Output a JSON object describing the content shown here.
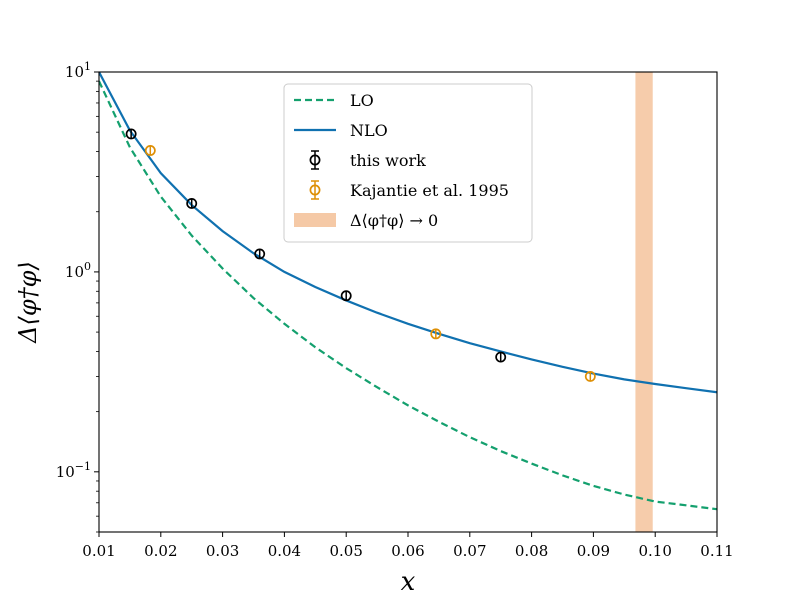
{
  "chart_data": {
    "type": "line",
    "title": "",
    "xlabel": "x",
    "ylabel": "Δ⟨φ†φ⟩",
    "xlim": [
      0.01,
      0.11
    ],
    "ylim": [
      0.05,
      10
    ],
    "yscale": "log",
    "x_ticks": [
      0.01,
      0.02,
      0.03,
      0.04,
      0.05,
      0.06,
      0.07,
      0.08,
      0.09,
      0.1,
      0.11
    ],
    "x_tick_labels": [
      "0.01",
      "0.02",
      "0.03",
      "0.04",
      "0.05",
      "0.06",
      "0.07",
      "0.08",
      "0.09",
      "0.10",
      "0.11"
    ],
    "y_major_ticks": [
      {
        "value": 0.1,
        "base": "10",
        "exp": "−1"
      },
      {
        "value": 1,
        "base": "10",
        "exp": "0"
      },
      {
        "value": 10,
        "base": "10",
        "exp": "1"
      }
    ],
    "series": [
      {
        "name": "LO",
        "style": "dashed",
        "color": "#14a06e",
        "x": [
          0.01,
          0.015,
          0.02,
          0.025,
          0.03,
          0.035,
          0.04,
          0.045,
          0.05,
          0.055,
          0.06,
          0.065,
          0.07,
          0.075,
          0.08,
          0.085,
          0.09,
          0.095,
          0.1,
          0.105,
          0.11
        ],
        "y": [
          9.0,
          4.2,
          2.38,
          1.52,
          1.04,
          0.74,
          0.55,
          0.42,
          0.33,
          0.265,
          0.215,
          0.178,
          0.149,
          0.127,
          0.11,
          0.096,
          0.085,
          0.077,
          0.071,
          0.068,
          0.065
        ]
      },
      {
        "name": "NLO",
        "style": "solid",
        "color": "#1071b0",
        "x": [
          0.01,
          0.015,
          0.02,
          0.025,
          0.03,
          0.035,
          0.04,
          0.045,
          0.05,
          0.055,
          0.06,
          0.065,
          0.07,
          0.075,
          0.08,
          0.085,
          0.09,
          0.095,
          0.1,
          0.105,
          0.11
        ],
        "y": [
          10.0,
          5.1,
          3.12,
          2.16,
          1.6,
          1.24,
          1.0,
          0.84,
          0.72,
          0.625,
          0.55,
          0.49,
          0.44,
          0.4,
          0.365,
          0.335,
          0.31,
          0.29,
          0.275,
          0.262,
          0.25
        ]
      },
      {
        "name": "this work",
        "style": "errorbar",
        "color": "#000000",
        "x": [
          0.0152,
          0.025,
          0.036,
          0.05,
          0.075
        ],
        "y": [
          4.9,
          2.2,
          1.23,
          0.76,
          0.375
        ]
      },
      {
        "name": "Kajantie et al. 1995",
        "style": "errorbar",
        "color": "#de8f05",
        "x": [
          0.0183,
          0.0645,
          0.0895
        ],
        "y": [
          4.05,
          0.49,
          0.3
        ]
      }
    ],
    "bands": [
      {
        "name": "Δ⟨φ†φ⟩ → 0",
        "x_range": [
          0.0968,
          0.0996
        ],
        "color": "#f5c9a6"
      }
    ],
    "legend": {
      "position": "top-center",
      "entries": [
        "LO",
        "NLO",
        "this work",
        "Kajantie et al. 1995",
        "Δ⟨φ†φ⟩ → 0"
      ]
    }
  }
}
